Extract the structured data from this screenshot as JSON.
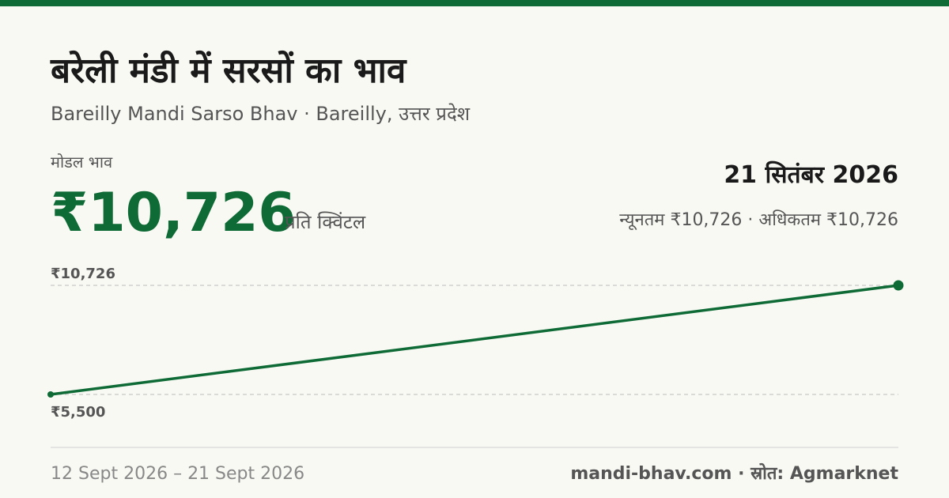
{
  "header": {
    "title": "बरेली मंडी में सरसों का भाव",
    "subtitle": "Bareilly Mandi Sarso Bhav · Bareilly, उत्तर प्रदेश",
    "price_label": "मोडल भाव",
    "price": "₹10,726",
    "unit": "प्रति क्विंटल",
    "date": "21 सितंबर 2026",
    "min_max": "न्यूनतम ₹10,726 · अधिकतम ₹10,726"
  },
  "chart_data": {
    "type": "line",
    "categories": [
      "12 Sept 2026",
      "21 Sept 2026"
    ],
    "values": [
      5500,
      10726
    ],
    "color": "#0e6b35",
    "ylim": [
      5500,
      10726
    ],
    "yticks": [
      {
        "value": 5500,
        "label": "₹5,500"
      },
      {
        "value": 10726,
        "label": "₹10,726"
      }
    ],
    "grid": true
  },
  "footer": {
    "range_separator": "–",
    "source": "mandi-bhav.com · स्रोत: Agmarknet"
  }
}
